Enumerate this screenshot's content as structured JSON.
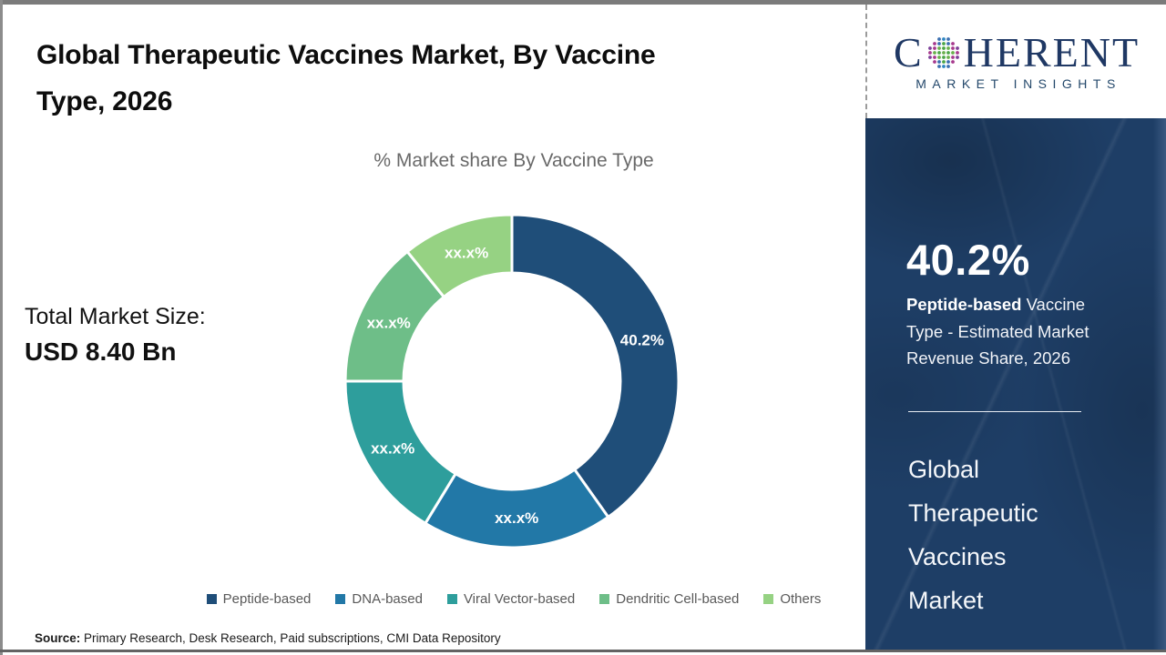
{
  "header": {
    "title_line1": "Global Therapeutic Vaccines Market, By Vaccine",
    "title_line2": "Type, 2026"
  },
  "logo": {
    "brand_first_letter": "C",
    "brand_rest": "HERENT",
    "tagline": "MARKET INSIGHTS",
    "brand_color": "#1f3864"
  },
  "chart_subtitle": "% Market share By Vaccine Type",
  "total_market": {
    "label": "Total Market Size:",
    "value": "USD 8.40 Bn"
  },
  "chart_data": {
    "type": "pie",
    "donut": true,
    "title": "% Market share By Vaccine Type",
    "categories": [
      "Peptide-based",
      "DNA-based",
      "Viral Vector-based",
      "Dendritic Cell-based",
      "Others"
    ],
    "values": [
      40.2,
      18.5,
      16.3,
      14.2,
      10.8
    ],
    "slice_labels": [
      "40.2%",
      "xx.x%",
      "xx.x%",
      "xx.x%",
      "xx.x%"
    ],
    "colors": [
      "#1F4E79",
      "#2278A7",
      "#2E9E9C",
      "#6EBE88",
      "#96D283"
    ],
    "start_angle_deg": 0,
    "legend_position": "bottom"
  },
  "sidebar": {
    "stat_value": "40.2%",
    "stat_desc_bold": "Peptide-based",
    "stat_desc_rest": " Vaccine Type - Estimated Market Revenue Share, 2026",
    "market_name": "Global Therapeutic Vaccines Market",
    "panel_color": "#1e3e66"
  },
  "source": {
    "label": "Source:",
    "text": " Primary Research, Desk Research, Paid subscriptions, CMI Data Repository"
  }
}
